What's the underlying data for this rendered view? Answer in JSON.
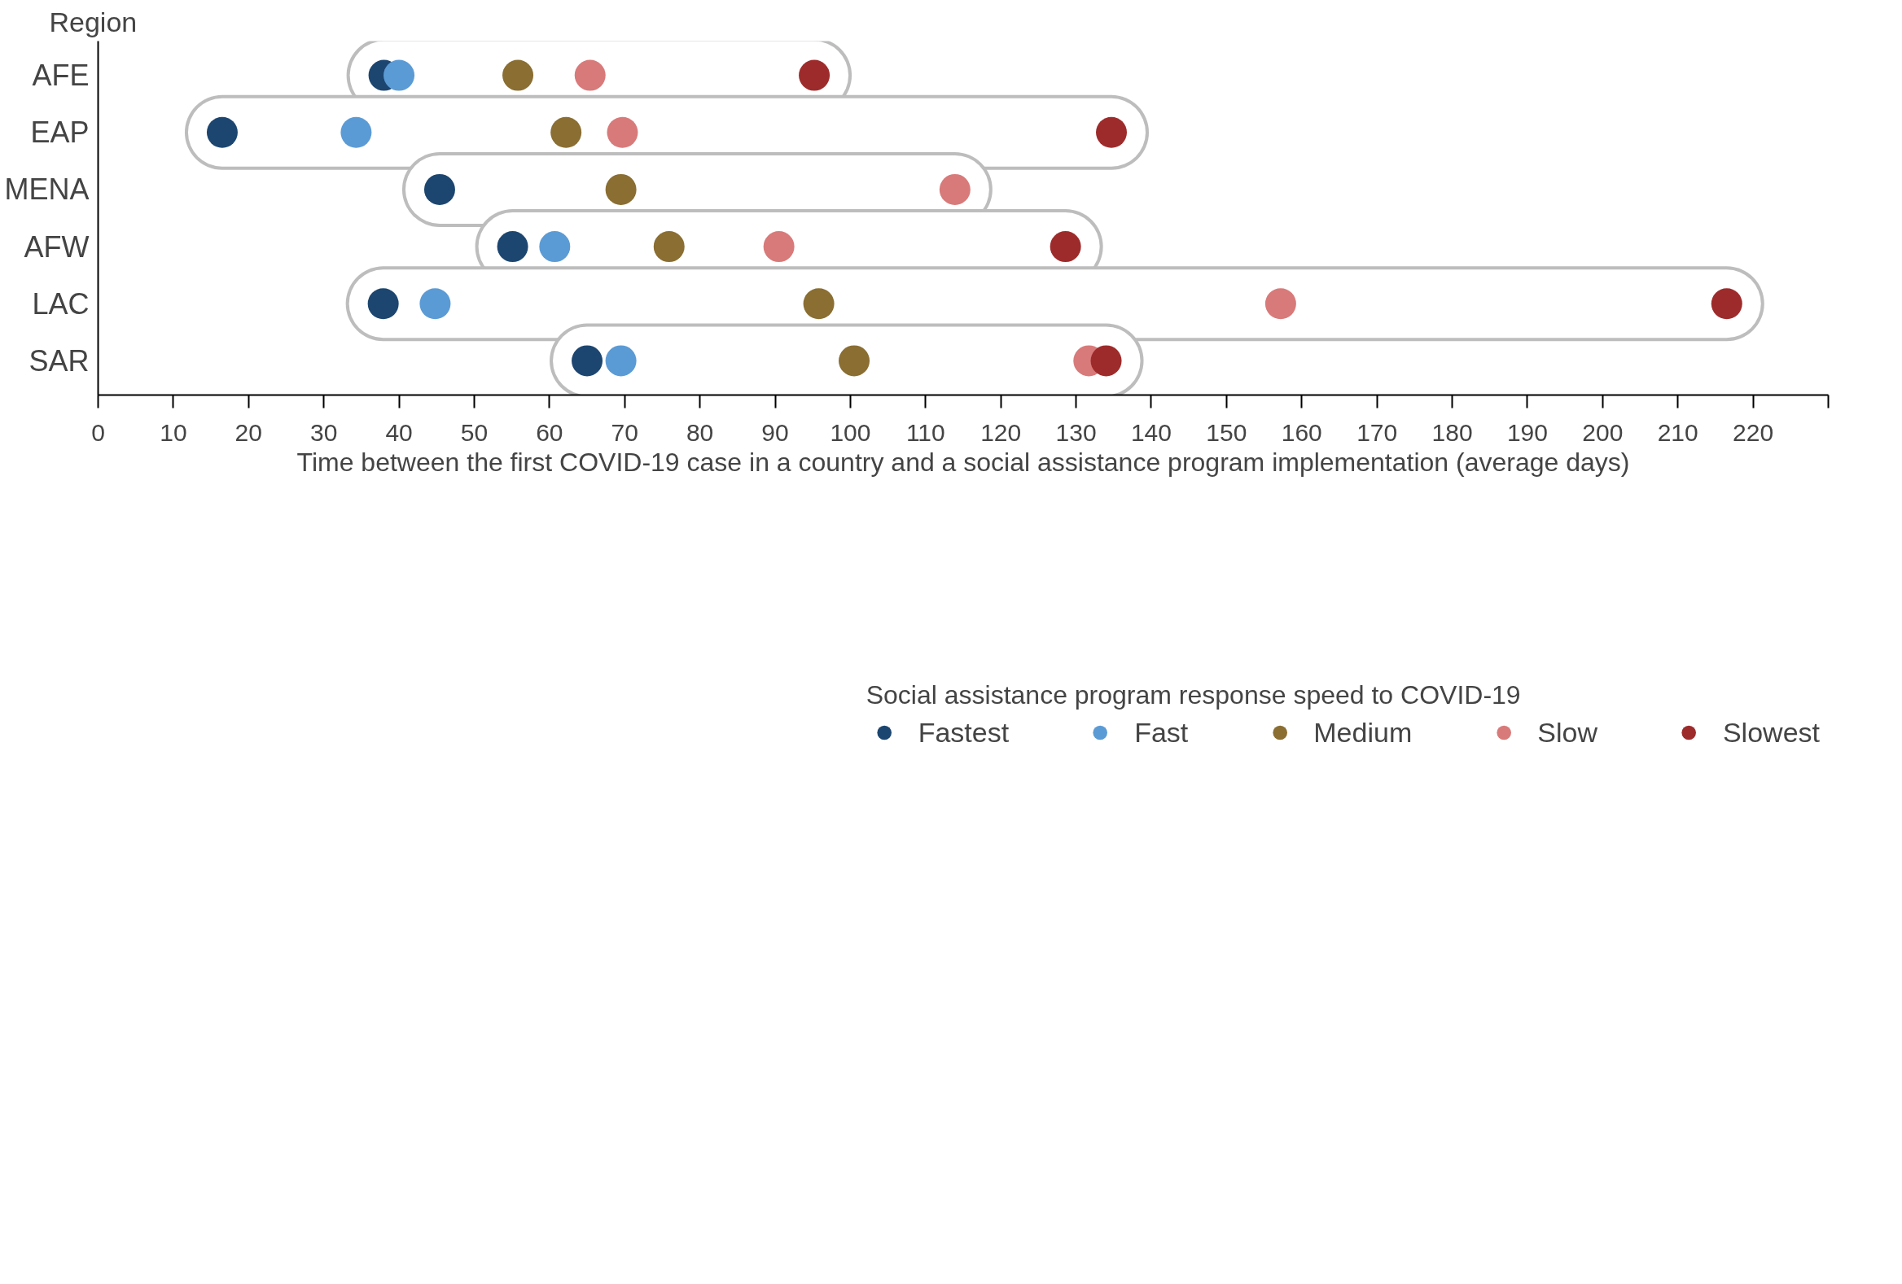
{
  "chart_data": {
    "type": "scatter",
    "ylabel": "Region",
    "xlabel": "Time between the first COVID-19 case in a country and a social assistance program implementation (average days)",
    "legend_title": "Social assistance program response speed to COVID-19",
    "legend": "bottom",
    "orientation": "horizontal",
    "grid": false,
    "marker": "circle",
    "categories": [
      "AFE",
      "EAP",
      "MENA",
      "AFW",
      "LAC",
      "SAR"
    ],
    "xlim": [
      0,
      230
    ],
    "xticks": [
      0,
      10,
      20,
      30,
      40,
      50,
      60,
      70,
      80,
      90,
      100,
      110,
      120,
      130,
      140,
      150,
      160,
      170,
      180,
      190,
      200,
      210,
      220,
      {
        "value": 230,
        "label": null
      }
    ],
    "series": [
      {
        "name": "Fastest",
        "color": "#1c4670",
        "values": [
          38,
          16.5,
          45.4,
          55.1,
          37.9,
          65
        ]
      },
      {
        "name": "Fast",
        "color": "#5b9bd5",
        "values": [
          40,
          34.3,
          null,
          60.7,
          44.8,
          69.5
        ]
      },
      {
        "name": "Medium",
        "color": "#8a6e32",
        "values": [
          55.8,
          62.2,
          69.5,
          75.9,
          95.8,
          100.5
        ]
      },
      {
        "name": "Slow",
        "color": "#d87a7a",
        "values": [
          65.4,
          69.7,
          113.9,
          90.5,
          157.2,
          131.7
        ]
      },
      {
        "name": "Slowest",
        "color": "#9e2b2b",
        "values": [
          95.2,
          134.7,
          null,
          128.6,
          216.5,
          134
        ]
      }
    ]
  }
}
